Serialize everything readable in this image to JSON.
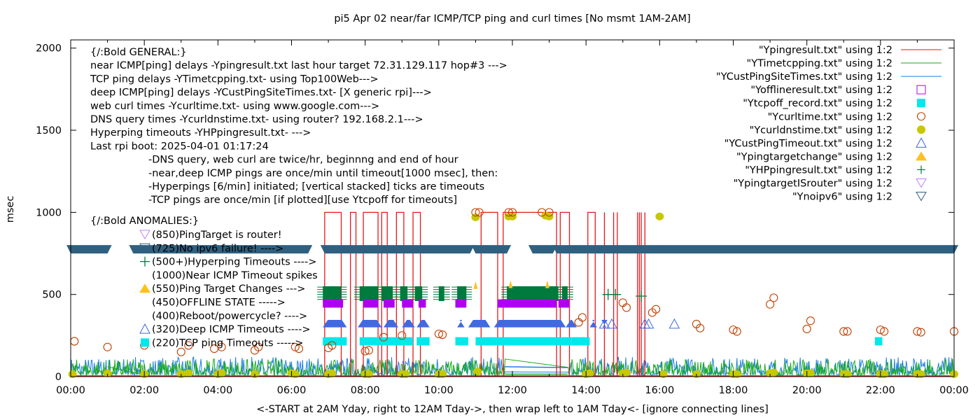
{
  "chart_data": {
    "type": "scatter",
    "title": "pi5 Apr 02  near/far ICMP/TCP ping and curl times [No msmt 1AM-2AM]",
    "xlabel": "<-START at 2AM Yday, right to 12AM Tday->, then wrap left to 1AM Tday<- [ignore connecting lines]",
    "ylabel": "msec",
    "xlim": [
      0,
      24
    ],
    "ylim": [
      0,
      2050
    ],
    "x_ticks": [
      "00:00",
      "02:00",
      "04:00",
      "06:00",
      "08:00",
      "10:00",
      "12:00",
      "14:00",
      "16:00",
      "18:00",
      "20:00",
      "22:00",
      "00:00"
    ],
    "y_ticks": [
      0,
      500,
      1000,
      1500,
      2000
    ],
    "grid": false,
    "legend_position": "top-right",
    "legend": [
      {
        "label": "\"Ypingresult.txt\" using 1:2",
        "style": "line",
        "color": "#e41a1c"
      },
      {
        "label": "\"YTimetcpping.txt\" using 1:2",
        "style": "line",
        "color": "#1aaa1a"
      },
      {
        "label": "\"YCustPingSiteTimes.txt\" using 1:2",
        "style": "line",
        "color": "#1e7fe0"
      },
      {
        "label": "\"Yofflineresult.txt\" using 1:2",
        "style": "open-square",
        "color": "#b000f0"
      },
      {
        "label": "\"Ytcpoff_record.txt\" using 1:2",
        "style": "filled-square",
        "color": "#00e8ea"
      },
      {
        "label": "\"Ycurltime.txt\" using 1:2",
        "style": "open-circle",
        "color": "#c04000"
      },
      {
        "label": "\"Ycurldnstime.txt\" using 1:2",
        "style": "filled-circle",
        "color": "#c8c800"
      },
      {
        "label": "\"YCustPingTimeout.txt\" using 1:2",
        "style": "open-triangle",
        "color": "#4169e1"
      },
      {
        "label": "\"Ypingtargetchange\" using 1:2",
        "style": "filled-triangle",
        "color": "#ffc020"
      },
      {
        "label": "\"YHPpingresult.txt\" using 1:2",
        "style": "plus",
        "color": "#007a3d"
      },
      {
        "label": "\"YpingtargetISrouter\" using 1:2",
        "style": "open-down-triangle",
        "color": "#c080ff"
      },
      {
        "label": "\"Ynoipv6\" using 1:2",
        "style": "open-down-triangle",
        "color": "#306080"
      }
    ],
    "annotations_general": [
      "{/:Bold GENERAL:}",
      "near ICMP[ping] delays -Ypingresult.txt last hour target 72.31.129.117 hop#3 --->",
      "TCP ping delays -YTimetcpping.txt- using Top100Web--->",
      "deep ICMP[ping] delays -YCustPingSiteTimes.txt- [X generic rpi]--->",
      "web curl times -Ycurltime.txt- using www.google.com--->",
      "DNS query times -Ycurldnstime.txt- using router? 192.168.2.1--->",
      "Hyperping timeouts -YHPpingresult.txt- --->",
      "Last rpi boot: 2025-04-01 01:17:24"
    ],
    "annotations_notes": [
      "-DNS query, web curl are twice/hr, beginnng and end of hour",
      "-near,deep ICMP pings are once/min until timeout[1000 msec], then:",
      "  -Hyperpings [6/min] initiated; [vertical stacked] ticks are timeouts",
      "-TCP pings are once/min [if plotted][use Ytcpoff for timeouts]"
    ],
    "annotations_anomalies_title": "{/:Bold ANOMALIES:}",
    "annotations_anomalies": [
      {
        "text": "(850)PingTarget is router!",
        "marker": "open-down-triangle",
        "color": "#c080ff"
      },
      {
        "text": "(725)No ipv6 failure! ---->",
        "marker": "open-down-triangle",
        "color": "#306080"
      },
      {
        "text": "(500+)Hyperping Timeouts ---->",
        "marker": "plus",
        "color": "#007a3d"
      },
      {
        "text": "(1000)Near ICMP Timeout spikes",
        "marker": "none",
        "color": ""
      },
      {
        "text": "(550)Ping Target Changes --->",
        "marker": "filled-triangle",
        "color": "#ffc020"
      },
      {
        "text": "(450)OFFLINE STATE ----->",
        "marker": "none",
        "color": ""
      },
      {
        "text": "(400)Reboot/powercycle? ---->",
        "marker": "none",
        "color": ""
      },
      {
        "text": "(320)Deep ICMP Timeouts ---->",
        "marker": "open-triangle",
        "color": "#4169e1"
      },
      {
        "text": "(220)TCP ping Timeouts ----->",
        "marker": "filled-square",
        "color": "#00e8ea"
      }
    ],
    "ipv6_band": {
      "y": 775,
      "gaps_hours": [
        [
          1.0,
          1.7
        ],
        [
          6.45,
          6.9
        ],
        [
          10.85,
          11.0
        ],
        [
          11.85,
          12.55
        ],
        [
          13.1,
          13.2
        ]
      ]
    },
    "near_icmp_timeouts": [
      [
        6.9,
        7.35
      ],
      [
        7.6,
        7.75
      ],
      [
        7.95,
        8.35
      ],
      [
        8.45,
        8.6
      ],
      [
        8.85,
        9.05
      ],
      [
        9.3,
        9.5
      ],
      [
        11.15,
        11.6
      ],
      [
        11.75,
        13.2
      ],
      [
        13.3,
        13.55
      ],
      [
        14.05,
        14.25
      ]
    ],
    "hyperping_blocks": [
      [
        6.85,
        7.35
      ],
      [
        7.85,
        8.35
      ],
      [
        8.45,
        8.75
      ],
      [
        8.95,
        9.15
      ],
      [
        9.35,
        9.55
      ],
      [
        10.0,
        10.15
      ],
      [
        10.5,
        10.75
      ],
      [
        11.85,
        13.25
      ],
      [
        13.35,
        13.5
      ]
    ],
    "offline_blocks": [
      [
        6.85,
        7.4
      ],
      [
        7.95,
        8.35
      ],
      [
        8.5,
        8.8
      ],
      [
        9.0,
        9.3
      ],
      [
        9.45,
        9.65
      ],
      [
        10.45,
        10.75
      ],
      [
        11.6,
        13.2
      ],
      [
        13.25,
        13.55
      ]
    ],
    "deep_icmp_timeout_blocks": [
      [
        6.85,
        7.5
      ],
      [
        7.8,
        8.45
      ],
      [
        8.5,
        8.9
      ],
      [
        9.0,
        9.35
      ],
      [
        9.4,
        9.75
      ],
      [
        10.5,
        10.7
      ],
      [
        10.8,
        11.4
      ],
      [
        11.5,
        13.45
      ],
      [
        13.45,
        13.75
      ],
      [
        14.1,
        14.3
      ],
      [
        14.45,
        14.55
      ]
    ],
    "tcp_timeout_blocks": [
      [
        6.85,
        7.5
      ],
      [
        7.85,
        8.5
      ],
      [
        8.5,
        9.0
      ],
      [
        9.0,
        9.3
      ],
      [
        9.4,
        9.75
      ],
      [
        10.45,
        10.8
      ],
      [
        11.0,
        13.6
      ],
      [
        13.6,
        14.1
      ],
      [
        21.85,
        22.05
      ]
    ],
    "curl_points": [
      [
        0.1,
        215
      ],
      [
        1.0,
        180
      ],
      [
        2.0,
        190
      ],
      [
        3.0,
        150
      ],
      [
        3.2,
        190
      ],
      [
        3.9,
        170
      ],
      [
        4.1,
        180
      ],
      [
        5.0,
        160
      ],
      [
        5.1,
        180
      ],
      [
        6.1,
        180
      ],
      [
        6.2,
        170
      ],
      [
        7.0,
        175
      ],
      [
        7.1,
        190
      ],
      [
        8.0,
        155
      ],
      [
        8.1,
        160
      ],
      [
        8.5,
        240
      ],
      [
        9.0,
        250
      ],
      [
        10.0,
        260
      ],
      [
        10.1,
        255
      ],
      [
        11.0,
        1000
      ],
      [
        11.1,
        1000
      ],
      [
        11.9,
        1000
      ],
      [
        12.0,
        1000
      ],
      [
        12.8,
        1000
      ],
      [
        13.0,
        1000
      ],
      [
        13.8,
        330
      ],
      [
        13.9,
        360
      ],
      [
        15.0,
        450
      ],
      [
        15.1,
        420
      ],
      [
        15.8,
        390
      ],
      [
        15.9,
        410
      ],
      [
        17.0,
        320
      ],
      [
        17.1,
        295
      ],
      [
        18.0,
        285
      ],
      [
        18.1,
        275
      ],
      [
        19.0,
        440
      ],
      [
        19.1,
        480
      ],
      [
        20.0,
        290
      ],
      [
        20.1,
        340
      ],
      [
        21.0,
        275
      ],
      [
        21.1,
        275
      ],
      [
        22.0,
        285
      ],
      [
        22.1,
        275
      ],
      [
        23.0,
        275
      ],
      [
        23.1,
        270
      ],
      [
        24.0,
        275
      ]
    ],
    "dns_points": [
      [
        0.05,
        15
      ],
      [
        1.0,
        20
      ],
      [
        2.0,
        15
      ],
      [
        3.0,
        15
      ],
      [
        3.2,
        20
      ],
      [
        4.0,
        15
      ],
      [
        4.1,
        20
      ],
      [
        5.0,
        15
      ],
      [
        6.0,
        20
      ],
      [
        6.1,
        15
      ],
      [
        7.0,
        15
      ],
      [
        7.1,
        20
      ],
      [
        8.0,
        15
      ],
      [
        8.1,
        15
      ],
      [
        9.0,
        15
      ],
      [
        9.1,
        15
      ],
      [
        10.0,
        15
      ],
      [
        10.1,
        15
      ],
      [
        11.0,
        970
      ],
      [
        11.05,
        30
      ],
      [
        11.9,
        975
      ],
      [
        12.0,
        975
      ],
      [
        12.9,
        980
      ],
      [
        13.0,
        975
      ],
      [
        14.0,
        15
      ],
      [
        14.1,
        20
      ],
      [
        15.0,
        20
      ],
      [
        15.1,
        25
      ],
      [
        16.0,
        975
      ],
      [
        16.1,
        15
      ],
      [
        17.0,
        15
      ],
      [
        18.0,
        15
      ],
      [
        18.1,
        15
      ],
      [
        19.0,
        20
      ],
      [
        19.1,
        25
      ],
      [
        20.0,
        20
      ],
      [
        20.1,
        20
      ],
      [
        21.0,
        15
      ],
      [
        21.1,
        15
      ],
      [
        22.0,
        15
      ],
      [
        22.1,
        15
      ],
      [
        23.0,
        15
      ],
      [
        23.1,
        15
      ],
      [
        24.0,
        15
      ]
    ],
    "hp_plus_points": [
      [
        14.6,
        500
      ],
      [
        14.8,
        500
      ],
      [
        15.5,
        490
      ]
    ],
    "deep_icmp_single_timeouts": [
      [
        14.5,
        320
      ],
      [
        14.7,
        320
      ],
      [
        15.6,
        320
      ],
      [
        15.7,
        320
      ],
      [
        16.4,
        320
      ]
    ],
    "target_change_points": [
      [
        11.95,
        560
      ],
      [
        12.95,
        560
      ],
      [
        11.0,
        555
      ]
    ]
  }
}
